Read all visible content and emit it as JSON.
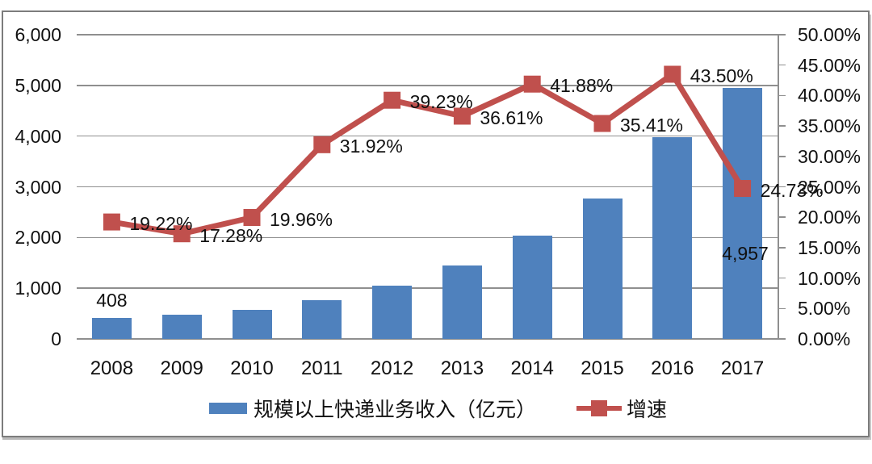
{
  "chart_data": {
    "type": "combo",
    "categories": [
      "2008",
      "2009",
      "2010",
      "2011",
      "2012",
      "2013",
      "2014",
      "2015",
      "2016",
      "2017"
    ],
    "series": [
      {
        "name": "规模以上快递业务收入（亿元）",
        "type": "bar",
        "axis": "left",
        "color": "#4f81bd",
        "values": [
          408,
          479,
          575,
          758,
          1055,
          1442,
          2045,
          2770,
          3974,
          4957
        ],
        "bar_labels": [
          {
            "index": 0,
            "text": "408"
          },
          {
            "index": 9,
            "text": "4,957"
          }
        ]
      },
      {
        "name": "增速",
        "type": "line",
        "axis": "right",
        "color": "#c0504d",
        "values": [
          19.22,
          17.28,
          19.96,
          31.92,
          39.23,
          36.61,
          41.88,
          35.41,
          43.5,
          24.73
        ],
        "point_labels": [
          "19.22%",
          "17.28%",
          "19.96%",
          "31.92%",
          "39.23%",
          "36.61%",
          "41.88%",
          "35.41%",
          "43.50%",
          "24.73%"
        ]
      }
    ],
    "left_axis": {
      "min": 0,
      "max": 6000,
      "step": 1000,
      "tick_labels": [
        "0",
        "1,000",
        "2,000",
        "3,000",
        "4,000",
        "5,000",
        "6,000"
      ]
    },
    "right_axis": {
      "min": 0,
      "max": 50,
      "step": 5,
      "tick_labels": [
        "0.00%",
        "5.00%",
        "10.00%",
        "15.00%",
        "20.00%",
        "25.00%",
        "30.00%",
        "35.00%",
        "40.00%",
        "45.00%",
        "50.00%"
      ]
    },
    "grid": "horizontal-only",
    "legend": {
      "position": "bottom",
      "entries": [
        {
          "label": "规模以上快递业务收入（亿元）",
          "marker": "bar-swatch",
          "color": "#4f81bd"
        },
        {
          "label": "增速",
          "marker": "line-square",
          "color": "#c0504d"
        }
      ]
    },
    "title": "",
    "xlabel": "",
    "ylabel": ""
  },
  "colors": {
    "bar": "#4f81bd",
    "line": "#c0504d",
    "grid": "#8f8f8f",
    "frame": "#7c7c7c",
    "text": "#111111",
    "background": "#ffffff"
  }
}
